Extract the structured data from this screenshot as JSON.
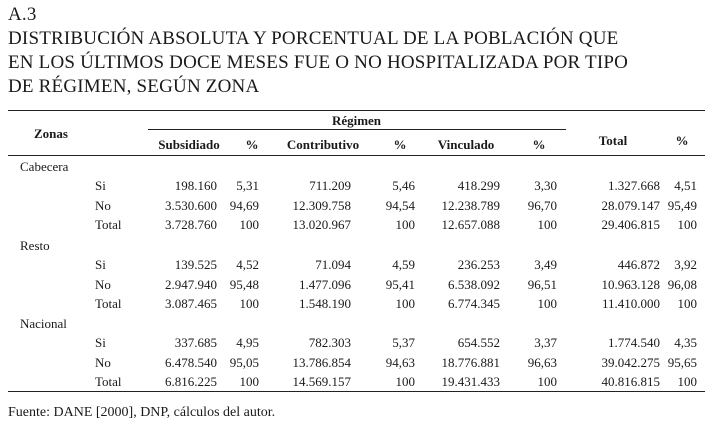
{
  "header": {
    "code": "A.3",
    "title_lines": [
      "DISTRIBUCIÓN ABSOLUTA Y PORCENTUAL DE LA POBLACIÓN QUE",
      "EN LOS ÚLTIMOS DOCE MESES FUE O NO HOSPITALIZADA POR TIPO",
      "DE RÉGIMEN, SEGÚN ZONA"
    ]
  },
  "table": {
    "zonas_label": "Zonas",
    "regimen_label": "Régimen",
    "columns": [
      "Subsidiado",
      "%",
      "Contributivo",
      "%",
      "Vinculado",
      "%",
      "Total",
      "%"
    ],
    "groups": [
      {
        "name": "Cabecera",
        "rows": [
          {
            "label": "Si",
            "values": [
              "198.160",
              "5,31",
              "711.209",
              "5,46",
              "418.299",
              "3,30",
              "1.327.668",
              "4,51"
            ]
          },
          {
            "label": "No",
            "values": [
              "3.530.600",
              "94,69",
              "12.309.758",
              "94,54",
              "12.238.789",
              "96,70",
              "28.079.147",
              "95,49"
            ]
          },
          {
            "label": "Total",
            "values": [
              "3.728.760",
              "100",
              "13.020.967",
              "100",
              "12.657.088",
              "100",
              "29.406.815",
              "100"
            ]
          }
        ]
      },
      {
        "name": "Resto",
        "rows": [
          {
            "label": "Si",
            "values": [
              "139.525",
              "4,52",
              "71.094",
              "4,59",
              "236.253",
              "3,49",
              "446.872",
              "3,92"
            ]
          },
          {
            "label": "No",
            "values": [
              "2.947.940",
              "95,48",
              "1.477.096",
              "95,41",
              "6.538.092",
              "96,51",
              "10.963.128",
              "96,08"
            ]
          },
          {
            "label": "Total",
            "values": [
              "3.087.465",
              "100",
              "1.548.190",
              "100",
              "6.774.345",
              "100",
              "11.410.000",
              "100"
            ]
          }
        ]
      },
      {
        "name": "Nacional",
        "rows": [
          {
            "label": "Si",
            "values": [
              "337.685",
              "4,95",
              "782.303",
              "5,37",
              "654.552",
              "3,37",
              "1.774.540",
              "4,35"
            ]
          },
          {
            "label": "No",
            "values": [
              "6.478.540",
              "95,05",
              "13.786.854",
              "94,63",
              "18.776.881",
              "96,63",
              "39.042.275",
              "95,65"
            ]
          },
          {
            "label": "Total",
            "values": [
              "6.816.225",
              "100",
              "14.569.157",
              "100",
              "19.431.433",
              "100",
              "40.816.815",
              "100"
            ]
          }
        ]
      }
    ]
  },
  "footer": {
    "source": "Fuente: DANE [2000], DNP, cálculos del autor."
  }
}
